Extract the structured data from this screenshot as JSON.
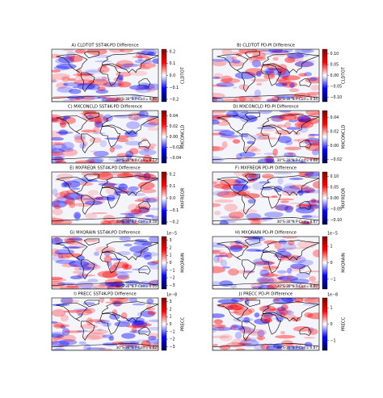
{
  "chart_data": [
    {
      "type": "map",
      "title": "A) CLDTOT SST4K-PD Difference",
      "colormap": "seismic",
      "colorbar": {
        "label": "CLDTOT",
        "lim": [
          -0.22,
          0.22
        ],
        "ticks": [
          0.2,
          0.1,
          {
            "value": 0,
            "label": "0.0"
          },
          {
            "value": -0.1,
            "label": "−0.1"
          },
          {
            "value": -0.2,
            "label": "−0.2"
          }
        ]
      },
      "annotation": "30°S-30°N P-Corr= 0.40"
    },
    {
      "type": "map",
      "title": "B) CLDTOT PD-PI Difference",
      "colormap": "seismic",
      "colorbar": {
        "label": "CLDTOT",
        "lim": [
          -0.12,
          0.12
        ],
        "ticks": [
          {
            "value": 0.1,
            "label": "0.10"
          },
          {
            "value": 0.05,
            "label": "0.05"
          },
          {
            "value": 0,
            "label": "0.00"
          },
          {
            "value": -0.05,
            "label": "−0.05"
          },
          {
            "value": -0.1,
            "label": "−0.10"
          }
        ]
      },
      "annotation": "30°S-30°N P-Corr= 0.34"
    },
    {
      "type": "map",
      "title": "C) MXCONCLD SST4K-PD Difference",
      "colormap": "seismic",
      "colorbar": {
        "label": "MXCONCLD",
        "lim": [
          -0.05,
          0.05
        ],
        "ticks": [
          0.04,
          0.02,
          {
            "value": 0,
            "label": "0.00"
          },
          {
            "value": -0.02,
            "label": "−0.02"
          },
          {
            "value": -0.04,
            "label": "−0.04"
          }
        ]
      },
      "annotation": "30°S-30°N P-Corr= 0.13"
    },
    {
      "type": "map",
      "title": "D) MXCONCLD PD-PI Difference",
      "colormap": "seismic",
      "colorbar": {
        "label": "MXCONCLD",
        "lim": [
          -0.025,
          0.05
        ],
        "ticks": [
          0.04,
          0.02,
          {
            "value": 0,
            "label": "0.00"
          },
          {
            "value": -0.02,
            "label": "−0.02"
          }
        ]
      },
      "annotation": "30°S-30°N P-Corr= 0.08"
    },
    {
      "type": "map",
      "title": "E) MXFREQR SST4K-PD Difference",
      "colormap": "seismic",
      "colorbar": {
        "label": "MXFREQR",
        "lim": [
          -0.22,
          0.22
        ],
        "ticks": [
          0.2,
          0.1,
          {
            "value": 0,
            "label": "0.0"
          },
          {
            "value": -0.1,
            "label": "−0.1"
          },
          {
            "value": -0.2,
            "label": "−0.2"
          }
        ]
      },
      "annotation": "30°S-30°N P-Corr= 0.18"
    },
    {
      "type": "map",
      "title": "F) MXFREQR PD-PI Difference",
      "colormap": "seismic",
      "colorbar": {
        "label": "MXFREQR",
        "lim": [
          -0.12,
          0.12
        ],
        "ticks": [
          {
            "value": 0.1,
            "label": "0.10"
          },
          {
            "value": 0.05,
            "label": "0.05"
          },
          {
            "value": 0,
            "label": "0.00"
          },
          {
            "value": -0.05,
            "label": "−0.05"
          },
          {
            "value": -0.1,
            "label": "−0.10"
          }
        ]
      },
      "annotation": "30°S-30°N P-Corr= 0.07"
    },
    {
      "type": "map",
      "title": "G) MXQRAIN SST4K-PD Difference",
      "colormap": "seismic",
      "colorbar": {
        "label": "MXQRAIN",
        "lim": [
          -3.5,
          3.5
        ],
        "offset_label": "1e−5",
        "ticks": [
          3,
          2,
          1,
          0,
          {
            "value": -1,
            "label": "−1"
          },
          {
            "value": -2,
            "label": "−2"
          },
          {
            "value": -3,
            "label": "−3"
          }
        ]
      },
      "annotation": "30°S-30°N P-Corr= 0.15"
    },
    {
      "type": "map",
      "title": "H) MXQRAIN PD-PI Difference",
      "colormap": "seismic",
      "colorbar": {
        "label": "MXQRAIN",
        "lim": [
          -1.6,
          1.6
        ],
        "offset_label": "1e−5",
        "ticks": [
          1,
          0,
          {
            "value": -1,
            "label": "−1"
          }
        ]
      },
      "annotation": "30°S-30°N P-Corr= 0.00"
    },
    {
      "type": "map",
      "title": "I) PRECC SST4K-PD Difference",
      "colormap": "seismic",
      "colorbar": {
        "label": "PRECC",
        "lim": [
          -3.5,
          3.5
        ],
        "offset_label": "1e−8",
        "ticks": [
          3,
          2,
          1,
          0,
          {
            "value": -1,
            "label": "−1"
          },
          {
            "value": -2,
            "label": "−2"
          },
          {
            "value": -3,
            "label": "−3"
          }
        ]
      },
      "annotation": "30°S-30°N P-Corr= 0.02"
    },
    {
      "type": "map",
      "title": "J) PRECC PD-PI Difference",
      "colormap": "seismic",
      "colorbar": {
        "label": "PRECC",
        "lim": [
          -1.6,
          1.6
        ],
        "offset_label": "1e−8",
        "ticks": [
          1,
          0,
          {
            "value": -1,
            "label": "−1"
          }
        ]
      },
      "annotation": "30°S-30°N P-Corr= 0.07"
    }
  ]
}
